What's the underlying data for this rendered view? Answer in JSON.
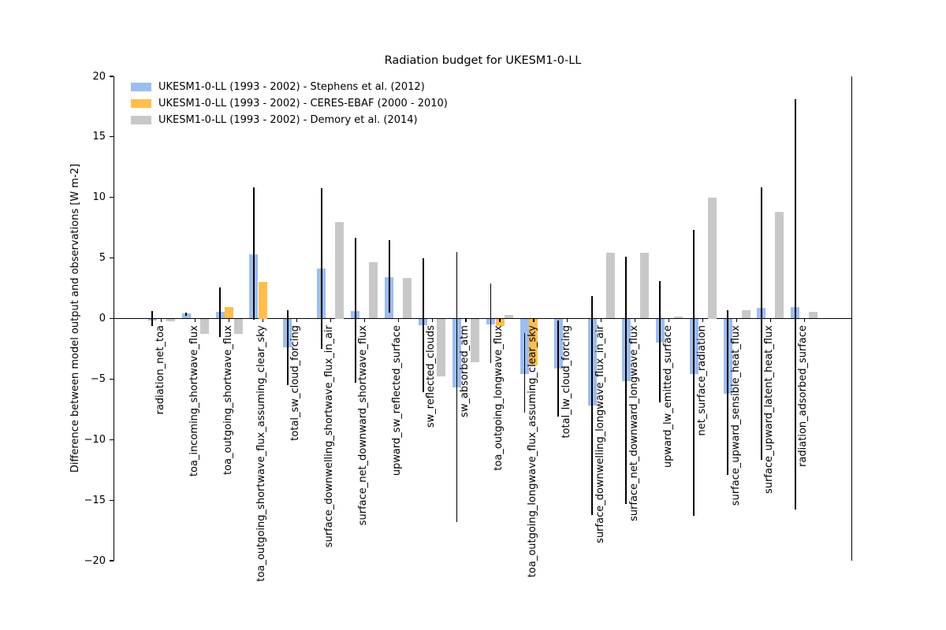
{
  "title": "Radiation budget for UKESM1-0-LL",
  "chart_data": {
    "type": "bar",
    "title": "Radiation budget for UKESM1-0-LL",
    "xlabel": "",
    "ylabel": "Difference between model output and observations [W m-2]",
    "ylim": [
      -20,
      20
    ],
    "yticks": [
      20,
      15,
      10,
      5,
      0,
      -5,
      -10,
      -15,
      -20
    ],
    "ytick_labels": [
      "20",
      "15",
      "10",
      "5",
      "0",
      "−5",
      "−10",
      "−15",
      "−20"
    ],
    "grid": false,
    "legend_position": "upper left",
    "baseline": 0,
    "categories": [
      "radiation_net_toa",
      "toa_incoming_shortwave_flux",
      "toa_outgoing_shortwave_flux",
      "toa_outgoing_shortwave_flux_assuming_clear_sky",
      "total_sw_cloud_forcing",
      "surface_downwelling_shortwave_flux_in_air",
      "surface_net_downward_shortwave_flux",
      "upward_sw_reflected_surface",
      "sw_reflected_clouds",
      "sw_absorbed_atm",
      "toa_outgoing_longwave_flux",
      "toa_outgoing_longwave_flux_assuming_clear_sky",
      "total_lw_cloud_forcing",
      "surface_downwelling_longwave_flux_in_air",
      "surface_net_downward_longwave_flux",
      "upward_lw_emitted_surface",
      "net_surface_radiation",
      "surface_upward_sensible_heat_flux",
      "surface_upward_latent_heat_flux",
      "radiation_adsorbed_surface"
    ],
    "series": [
      {
        "name": "UKESM1-0-LL (1993 - 2002) - Stephens et al. (2012)",
        "color": "#9dbdee",
        "values": [
          -0.15,
          0.4,
          0.55,
          5.3,
          -2.35,
          4.1,
          0.65,
          3.4,
          -0.55,
          -5.7,
          -0.5,
          -4.6,
          -4.1,
          -7.2,
          -5.2,
          -2.0,
          -4.6,
          -6.2,
          0.9,
          0.95
        ]
      },
      {
        "name": "UKESM1-0-LL (1993 - 2002) - CERES-EBAF (2000 - 2010)",
        "color": "#ffbe4d",
        "values": [
          null,
          null,
          0.95,
          3.0,
          null,
          null,
          null,
          null,
          null,
          null,
          -0.6,
          -3.9,
          null,
          null,
          null,
          null,
          null,
          null,
          null,
          null
        ]
      },
      {
        "name": "UKESM1-0-LL (1993 - 2002) - Demory et al. (2014)",
        "color": "#c8c8c8",
        "values": [
          -0.25,
          -1.25,
          -1.25,
          null,
          null,
          8.0,
          4.65,
          3.35,
          -4.8,
          -3.6,
          0.3,
          null,
          null,
          5.4,
          5.4,
          0.15,
          10.0,
          0.7,
          8.8,
          0.55
        ]
      }
    ],
    "error_bars": {
      "attached_to_series": "UKESM1-0-LL (1993 - 2002) - Stephens et al. (2012)",
      "color": "#000000",
      "ranges_hi_lo": [
        [
          0.6,
          -0.6
        ],
        [
          0.5,
          0.25
        ],
        [
          2.55,
          -1.5
        ],
        [
          10.8,
          -0.1
        ],
        [
          0.7,
          -5.5
        ],
        [
          10.75,
          -2.5
        ],
        [
          6.65,
          -5.3
        ],
        [
          6.5,
          0.5
        ],
        [
          5.0,
          -6.1
        ],
        [
          5.5,
          -16.8
        ],
        [
          2.9,
          -3.7
        ],
        [
          -1.2,
          -7.8
        ],
        [
          -0.15,
          -8.1
        ],
        [
          1.85,
          -16.2
        ],
        [
          5.1,
          -15.3
        ],
        [
          3.1,
          -6.9
        ],
        [
          7.3,
          -16.3
        ],
        [
          0.7,
          -12.9
        ],
        [
          10.8,
          -11.7
        ],
        [
          18.1,
          -15.8
        ]
      ]
    }
  }
}
